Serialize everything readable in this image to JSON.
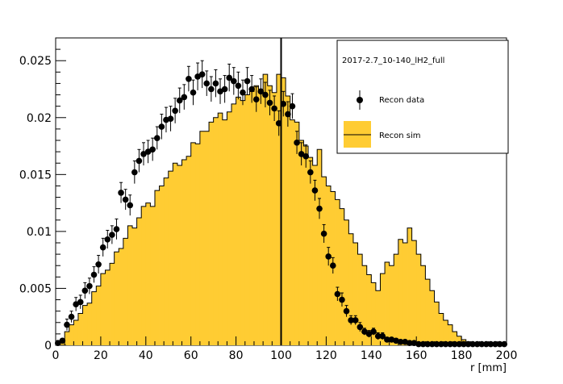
{
  "chart_data": {
    "type": "bar",
    "title": "",
    "xlabel": "r [mm]",
    "ylabel": "",
    "xlim": [
      0,
      200
    ],
    "ylim": [
      0,
      0.027
    ],
    "grid": false,
    "legend_position": "top-right",
    "x_ticks": [
      "0",
      "20",
      "40",
      "60",
      "80",
      "100",
      "120",
      "140",
      "160",
      "180",
      "200"
    ],
    "y_ticks": [
      "0",
      "0.005",
      "0.01",
      "0.015",
      "0.02",
      "0.025"
    ],
    "vertical_line_x": 100,
    "bin_width": 2,
    "legend": {
      "header": "2017-2.7_10-140_lH2_full",
      "entries": [
        "Recon data",
        "Recon sim"
      ]
    },
    "series": [
      {
        "name": "Recon sim",
        "style": "filled-histogram",
        "color": "#ffcc33",
        "bin_start": 0,
        "values": [
          0.0002,
          0.0005,
          0.0012,
          0.0018,
          0.0022,
          0.0028,
          0.0035,
          0.0037,
          0.0047,
          0.0052,
          0.0063,
          0.0066,
          0.0072,
          0.0082,
          0.0085,
          0.0094,
          0.0105,
          0.0103,
          0.0112,
          0.0122,
          0.0125,
          0.0122,
          0.0136,
          0.014,
          0.0147,
          0.0153,
          0.016,
          0.0158,
          0.0163,
          0.0166,
          0.0178,
          0.0177,
          0.0188,
          0.0188,
          0.0196,
          0.02,
          0.0204,
          0.0198,
          0.0205,
          0.0212,
          0.0218,
          0.0215,
          0.022,
          0.0223,
          0.0228,
          0.0224,
          0.0238,
          0.0228,
          0.0222,
          0.0238,
          0.0235,
          0.0219,
          0.0198,
          0.0196,
          0.018,
          0.0175,
          0.0165,
          0.0158,
          0.0172,
          0.0148,
          0.014,
          0.0135,
          0.0128,
          0.012,
          0.011,
          0.0098,
          0.009,
          0.008,
          0.007,
          0.0062,
          0.0055,
          0.0048,
          0.0063,
          0.0073,
          0.007,
          0.008,
          0.0093,
          0.009,
          0.0103,
          0.0092,
          0.008,
          0.007,
          0.0058,
          0.0048,
          0.0038,
          0.0028,
          0.0022,
          0.0018,
          0.0012,
          0.0008,
          0.0005,
          0.0003,
          0.0002,
          0.0001,
          0.0001,
          0.0001,
          0.0001,
          0.0001,
          0.0001,
          0.0001
        ]
      },
      {
        "name": "Recon data",
        "style": "points-with-errors",
        "color": "#000000",
        "points": [
          [
            1,
            0.0002
          ],
          [
            3,
            0.0004
          ],
          [
            5,
            0.0018
          ],
          [
            7,
            0.0025
          ],
          [
            9,
            0.0036
          ],
          [
            11,
            0.0038
          ],
          [
            13,
            0.0048
          ],
          [
            15,
            0.0052
          ],
          [
            17,
            0.0062
          ],
          [
            19,
            0.0071
          ],
          [
            21,
            0.0086
          ],
          [
            23,
            0.0093
          ],
          [
            25,
            0.0097
          ],
          [
            27,
            0.0102
          ],
          [
            29,
            0.0134
          ],
          [
            31,
            0.0128
          ],
          [
            33,
            0.0123
          ],
          [
            35,
            0.0152
          ],
          [
            37,
            0.0162
          ],
          [
            39,
            0.0168
          ],
          [
            41,
            0.017
          ],
          [
            43,
            0.0172
          ],
          [
            45,
            0.0182
          ],
          [
            47,
            0.0192
          ],
          [
            49,
            0.0198
          ],
          [
            51,
            0.0199
          ],
          [
            53,
            0.0206
          ],
          [
            55,
            0.0215
          ],
          [
            57,
            0.0218
          ],
          [
            59,
            0.0234
          ],
          [
            61,
            0.0222
          ],
          [
            63,
            0.0236
          ],
          [
            65,
            0.0238
          ],
          [
            67,
            0.023
          ],
          [
            69,
            0.0225
          ],
          [
            71,
            0.023
          ],
          [
            73,
            0.0223
          ],
          [
            75,
            0.0225
          ],
          [
            77,
            0.0235
          ],
          [
            79,
            0.0232
          ],
          [
            81,
            0.0228
          ],
          [
            83,
            0.0222
          ],
          [
            85,
            0.0232
          ],
          [
            87,
            0.0225
          ],
          [
            89,
            0.0216
          ],
          [
            91,
            0.0223
          ],
          [
            93,
            0.022
          ],
          [
            95,
            0.0213
          ],
          [
            97,
            0.0208
          ],
          [
            99,
            0.0195
          ],
          [
            101,
            0.0212
          ],
          [
            103,
            0.0203
          ],
          [
            105,
            0.021
          ],
          [
            107,
            0.0178
          ],
          [
            109,
            0.0168
          ],
          [
            111,
            0.0166
          ],
          [
            113,
            0.0152
          ],
          [
            115,
            0.0136
          ],
          [
            117,
            0.012
          ],
          [
            119,
            0.0098
          ],
          [
            121,
            0.0078
          ],
          [
            123,
            0.007
          ],
          [
            125,
            0.0045
          ],
          [
            127,
            0.004
          ],
          [
            129,
            0.003
          ],
          [
            131,
            0.0022
          ],
          [
            133,
            0.0022
          ],
          [
            135,
            0.0016
          ],
          [
            137,
            0.0012
          ],
          [
            139,
            0.001
          ],
          [
            141,
            0.0012
          ],
          [
            143,
            0.0008
          ],
          [
            145,
            0.0008
          ],
          [
            147,
            0.0005
          ],
          [
            149,
            0.0005
          ],
          [
            151,
            0.0004
          ],
          [
            153,
            0.0003
          ],
          [
            155,
            0.0003
          ],
          [
            157,
            0.0002
          ],
          [
            159,
            0.0002
          ],
          [
            161,
            0.0001
          ],
          [
            163,
            0.0001
          ],
          [
            165,
            0.0001
          ],
          [
            167,
            0.0001
          ],
          [
            169,
            0.0001
          ],
          [
            171,
            0.0001
          ],
          [
            173,
            0.0001
          ],
          [
            175,
            0.0001
          ],
          [
            177,
            0.0001
          ],
          [
            179,
            0.0001
          ],
          [
            181,
            0.0001
          ],
          [
            183,
            0.0001
          ],
          [
            185,
            0.0001
          ],
          [
            187,
            0.0001
          ],
          [
            189,
            0.0001
          ],
          [
            191,
            0.0001
          ],
          [
            193,
            0.0001
          ],
          [
            195,
            0.0001
          ],
          [
            197,
            0.0001
          ],
          [
            199,
            0.0001
          ]
        ],
        "errors": [
          0.0001,
          0.0001,
          0.0005,
          0.0005,
          0.0006,
          0.0006,
          0.0007,
          0.0007,
          0.0007,
          0.0008,
          0.0008,
          0.0008,
          0.0008,
          0.0009,
          0.0009,
          0.0009,
          0.0009,
          0.001,
          0.001,
          0.001,
          0.001,
          0.001,
          0.001,
          0.0011,
          0.0011,
          0.0011,
          0.0011,
          0.0011,
          0.0011,
          0.0011,
          0.0011,
          0.0012,
          0.0012,
          0.0011,
          0.0011,
          0.0012,
          0.0011,
          0.0012,
          0.0012,
          0.0012,
          0.0012,
          0.0011,
          0.0012,
          0.0012,
          0.0011,
          0.0011,
          0.0011,
          0.0011,
          0.0011,
          0.0011,
          0.0011,
          0.0011,
          0.0011,
          0.001,
          0.001,
          0.001,
          0.001,
          0.0009,
          0.0009,
          0.0008,
          0.0008,
          0.0007,
          0.0006,
          0.0006,
          0.0005,
          0.0004,
          0.0004,
          0.0004,
          0.0003,
          0.0003,
          0.0003,
          0.0003,
          0.0003,
          0.0002,
          0.0002,
          0.0002,
          0.0002,
          0.0002,
          0.0001,
          0.0001,
          0.0001,
          0.0001,
          0.0001,
          0.0001,
          0.0001,
          0.0001,
          0.0001,
          0.0001,
          0.0001,
          0.0001,
          0.0001,
          0.0001,
          0.0001,
          0.0001,
          0.0001,
          0.0001,
          0.0001,
          0.0001,
          0.0001,
          0.0001
        ]
      }
    ]
  }
}
